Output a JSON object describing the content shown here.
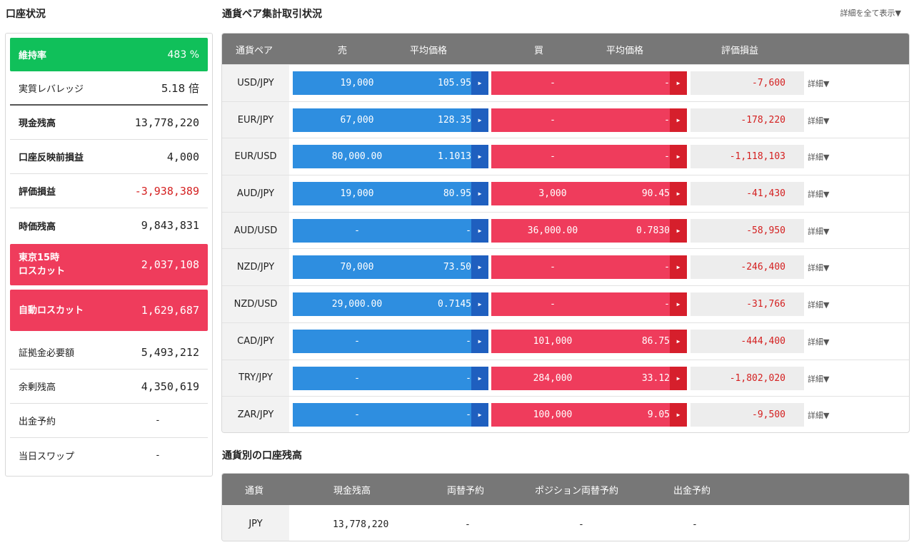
{
  "account": {
    "title": "口座状況",
    "rows": [
      {
        "label": "維持率",
        "value": "483 %"
      },
      {
        "label": "実質レバレッジ",
        "value": "5.18 倍"
      },
      {
        "label": "現金残高",
        "value": "13,778,220"
      },
      {
        "label": "口座反映前損益",
        "value": "4,000"
      },
      {
        "label": "評価損益",
        "value": "-3,938,389"
      },
      {
        "label": "時価残高",
        "value": "9,843,831"
      },
      {
        "label": "東京15時\nロスカット",
        "value": "2,037,108"
      },
      {
        "label": "自動ロスカット",
        "value": "1,629,687"
      },
      {
        "label": "証拠金必要額",
        "value": "5,493,212"
      },
      {
        "label": "余剰残高",
        "value": "4,350,619"
      },
      {
        "label": "出金予約",
        "value": "-"
      },
      {
        "label": "当日スワップ",
        "value": "-"
      }
    ]
  },
  "pairs": {
    "title": "通貨ペア集計取引状況",
    "show_all": "詳細を全て表示▼",
    "headers": {
      "pair": "通貨ペア",
      "sell": "売",
      "sell_avg": "平均価格",
      "buy": "買",
      "buy_avg": "平均価格",
      "pl": "評価損益"
    },
    "detail_label": "詳細▼",
    "arrow": "▶",
    "rows": [
      {
        "pair": "USD/JPY",
        "sell_qty": "19,000",
        "sell_avg": "105.95",
        "buy_qty": "-",
        "buy_avg": "-",
        "pl": "-7,600"
      },
      {
        "pair": "EUR/JPY",
        "sell_qty": "67,000",
        "sell_avg": "128.35",
        "buy_qty": "-",
        "buy_avg": "-",
        "pl": "-178,220"
      },
      {
        "pair": "EUR/USD",
        "sell_qty": "80,000.00",
        "sell_avg": "1.1013",
        "buy_qty": "-",
        "buy_avg": "-",
        "pl": "-1,118,103"
      },
      {
        "pair": "AUD/JPY",
        "sell_qty": "19,000",
        "sell_avg": "80.95",
        "buy_qty": "3,000",
        "buy_avg": "90.45",
        "pl": "-41,430"
      },
      {
        "pair": "AUD/USD",
        "sell_qty": "-",
        "sell_avg": "-",
        "buy_qty": "36,000.00",
        "buy_avg": "0.7830",
        "pl": "-58,950"
      },
      {
        "pair": "NZD/JPY",
        "sell_qty": "70,000",
        "sell_avg": "73.50",
        "buy_qty": "-",
        "buy_avg": "-",
        "pl": "-246,400"
      },
      {
        "pair": "NZD/USD",
        "sell_qty": "29,000.00",
        "sell_avg": "0.7145",
        "buy_qty": "-",
        "buy_avg": "-",
        "pl": "-31,766"
      },
      {
        "pair": "CAD/JPY",
        "sell_qty": "-",
        "sell_avg": "-",
        "buy_qty": "101,000",
        "buy_avg": "86.75",
        "pl": "-444,400"
      },
      {
        "pair": "TRY/JPY",
        "sell_qty": "-",
        "sell_avg": "-",
        "buy_qty": "284,000",
        "buy_avg": "33.12",
        "pl": "-1,802,020"
      },
      {
        "pair": "ZAR/JPY",
        "sell_qty": "-",
        "sell_avg": "-",
        "buy_qty": "100,000",
        "buy_avg": "9.05",
        "pl": "-9,500"
      }
    ]
  },
  "balance": {
    "title": "通貨別の口座残高",
    "headers": {
      "currency": "通貨",
      "cash": "現金残高",
      "exchange": "両替予約",
      "position_exchange": "ポジション両替予約",
      "withdraw": "出金予約"
    },
    "row": {
      "currency": "JPY",
      "cash": "13,778,220",
      "exchange": "-",
      "position_exchange": "-",
      "withdraw": "-"
    }
  },
  "colors": {
    "green": "#10c05a",
    "red": "#ef3c5c",
    "blue": "#2e8ee0",
    "negative": "#d42020",
    "header": "#777777"
  }
}
